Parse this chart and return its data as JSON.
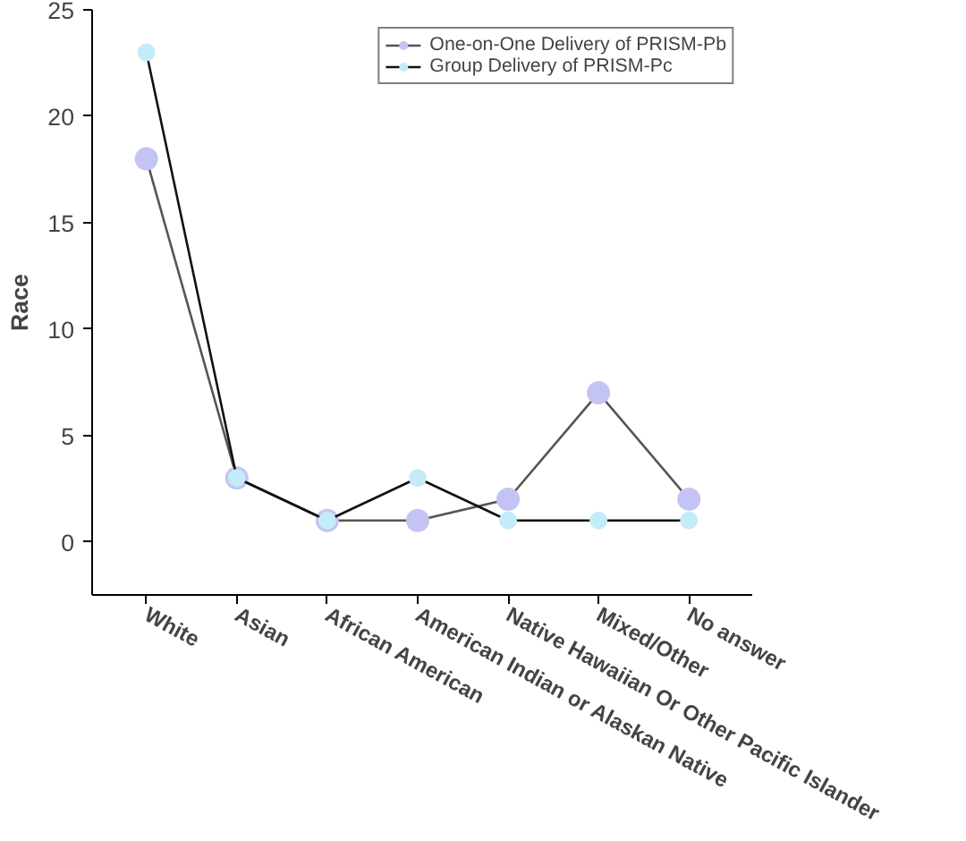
{
  "chart_data": {
    "type": "line",
    "ylabel": "Race",
    "categories": [
      "White",
      "Asian",
      "African American",
      "American Indian or Alaskan Native",
      "Native Hawaiian Or Other Pacific Islander",
      "Mixed/Other",
      "No answer"
    ],
    "series": [
      {
        "name": "One-on-One Delivery of PRISM-Pb",
        "color": "#555555",
        "colors": [
          "#c4c4f4",
          "#c4c4f4",
          "#c4c4f4",
          "#c4c4f4",
          "#c4c4f4",
          "#c4c4f4",
          "#c4c4f4"
        ],
        "values": [
          18,
          3,
          1,
          1,
          2,
          7,
          2
        ]
      },
      {
        "name": "Group Delivery of PRISM-Pc",
        "color": "#111111",
        "colors": [
          "#c4ecf8",
          "#c4ecf8",
          "#c4ecf8",
          "#c4ecf8",
          "#c4ecf8",
          "#c4ecf8",
          "#c4ecf8"
        ],
        "values": [
          23,
          3,
          1,
          3,
          1,
          1,
          1
        ]
      }
    ],
    "ylim": [
      -2.5,
      25
    ],
    "yticks": [
      0,
      5,
      10,
      15,
      20,
      25
    ],
    "grid": false,
    "legend": "top right",
    "marker": "circle"
  }
}
